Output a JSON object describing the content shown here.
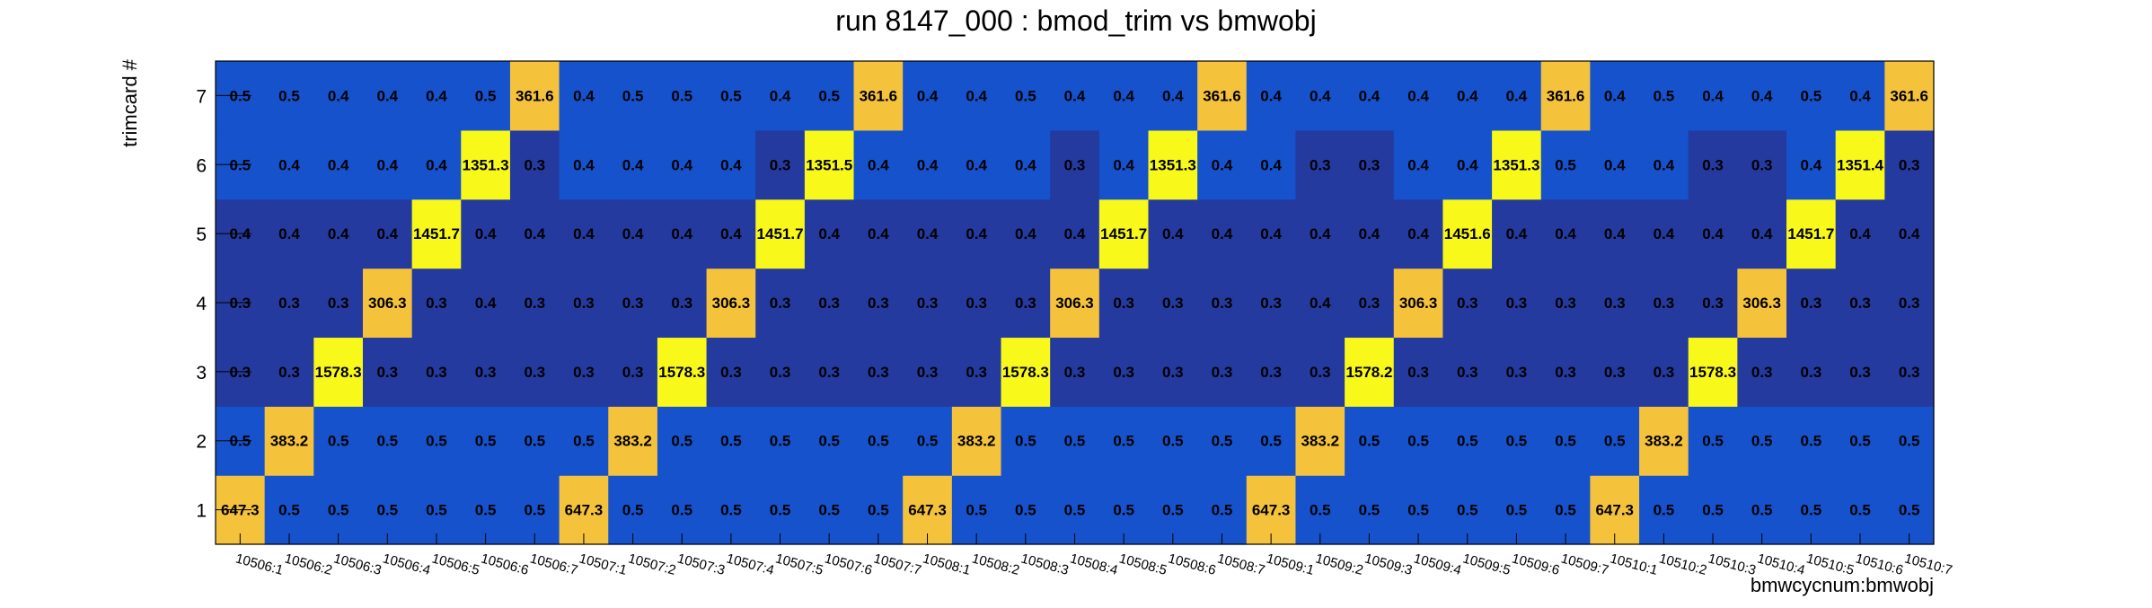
{
  "chart_data": {
    "type": "heatmap",
    "title": "run 8147_000 : bmod_trim vs bmwobj",
    "xlabel": "bmwcycnum:bmwobj",
    "ylabel": "trimcard #",
    "x_categories": [
      "10506:1",
      "10506:2",
      "10506:3",
      "10506:4",
      "10506:5",
      "10506:6",
      "10506:7",
      "10507:1",
      "10507:2",
      "10507:3",
      "10507:4",
      "10507:5",
      "10507:6",
      "10507:7",
      "10508:1",
      "10508:2",
      "10508:3",
      "10508:4",
      "10508:5",
      "10508:6",
      "10508:7",
      "10509:1",
      "10509:2",
      "10509:3",
      "10509:4",
      "10509:5",
      "10509:6",
      "10509:7",
      "10510:1",
      "10510:2",
      "10510:3",
      "10510:4",
      "10510:5",
      "10510:6",
      "10510:7"
    ],
    "y_categories": [
      "1",
      "2",
      "3",
      "4",
      "5",
      "6",
      "7"
    ],
    "values": [
      [
        "647.3",
        "0.5",
        "0.5",
        "0.5",
        "0.5",
        "0.5",
        "0.5",
        "647.3",
        "0.5",
        "0.5",
        "0.5",
        "0.5",
        "0.5",
        "0.5",
        "647.3",
        "0.5",
        "0.5",
        "0.5",
        "0.5",
        "0.5",
        "0.5",
        "647.3",
        "0.5",
        "0.5",
        "0.5",
        "0.5",
        "0.5",
        "0.5",
        "647.3",
        "0.5",
        "0.5",
        "0.5",
        "0.5",
        "0.5",
        "0.5"
      ],
      [
        "0.5",
        "383.2",
        "0.5",
        "0.5",
        "0.5",
        "0.5",
        "0.5",
        "0.5",
        "383.2",
        "0.5",
        "0.5",
        "0.5",
        "0.5",
        "0.5",
        "0.5",
        "383.2",
        "0.5",
        "0.5",
        "0.5",
        "0.5",
        "0.5",
        "0.5",
        "383.2",
        "0.5",
        "0.5",
        "0.5",
        "0.5",
        "0.5",
        "0.5",
        "383.2",
        "0.5",
        "0.5",
        "0.5",
        "0.5",
        "0.5"
      ],
      [
        "0.3",
        "0.3",
        "1578.3",
        "0.3",
        "0.3",
        "0.3",
        "0.3",
        "0.3",
        "0.3",
        "1578.3",
        "0.3",
        "0.3",
        "0.3",
        "0.3",
        "0.3",
        "0.3",
        "1578.3",
        "0.3",
        "0.3",
        "0.3",
        "0.3",
        "0.3",
        "0.3",
        "1578.2",
        "0.3",
        "0.3",
        "0.3",
        "0.3",
        "0.3",
        "0.3",
        "1578.3",
        "0.3",
        "0.3",
        "0.3",
        "0.3"
      ],
      [
        "0.3",
        "0.3",
        "0.3",
        "306.3",
        "0.3",
        "0.4",
        "0.3",
        "0.3",
        "0.3",
        "0.3",
        "306.3",
        "0.3",
        "0.3",
        "0.3",
        "0.3",
        "0.3",
        "0.3",
        "306.3",
        "0.3",
        "0.3",
        "0.3",
        "0.3",
        "0.4",
        "0.3",
        "306.3",
        "0.3",
        "0.3",
        "0.3",
        "0.3",
        "0.3",
        "0.3",
        "306.3",
        "0.3",
        "0.3",
        "0.3"
      ],
      [
        "0.4",
        "0.4",
        "0.4",
        "0.4",
        "1451.7",
        "0.4",
        "0.4",
        "0.4",
        "0.4",
        "0.4",
        "0.4",
        "1451.7",
        "0.4",
        "0.4",
        "0.4",
        "0.4",
        "0.4",
        "0.4",
        "1451.7",
        "0.4",
        "0.4",
        "0.4",
        "0.4",
        "0.4",
        "0.4",
        "1451.6",
        "0.4",
        "0.4",
        "0.4",
        "0.4",
        "0.4",
        "0.4",
        "1451.7",
        "0.4",
        "0.4"
      ],
      [
        "0.5",
        "0.4",
        "0.4",
        "0.4",
        "0.4",
        "1351.3",
        "0.3",
        "0.4",
        "0.4",
        "0.4",
        "0.4",
        "0.3",
        "1351.5",
        "0.4",
        "0.4",
        "0.4",
        "0.4",
        "0.3",
        "0.4",
        "1351.3",
        "0.4",
        "0.4",
        "0.3",
        "0.3",
        "0.4",
        "0.4",
        "1351.3",
        "0.5",
        "0.4",
        "0.4",
        "0.3",
        "0.3",
        "0.4",
        "1351.4",
        "0.3"
      ],
      [
        "0.5",
        "0.5",
        "0.4",
        "0.4",
        "0.4",
        "0.5",
        "361.6",
        "0.4",
        "0.5",
        "0.5",
        "0.5",
        "0.4",
        "0.5",
        "361.6",
        "0.4",
        "0.4",
        "0.5",
        "0.4",
        "0.4",
        "0.4",
        "361.6",
        "0.4",
        "0.4",
        "0.4",
        "0.4",
        "0.4",
        "0.4",
        "361.6",
        "0.4",
        "0.5",
        "0.4",
        "0.4",
        "0.5",
        "0.4",
        "361.6"
      ]
    ],
    "colors": {
      "low": "#243a9e",
      "mid": "#1552cc",
      "peak_yellow": "#f8f81a",
      "peak_orange": "#f5c23b"
    },
    "grid": false,
    "legend": "none"
  }
}
